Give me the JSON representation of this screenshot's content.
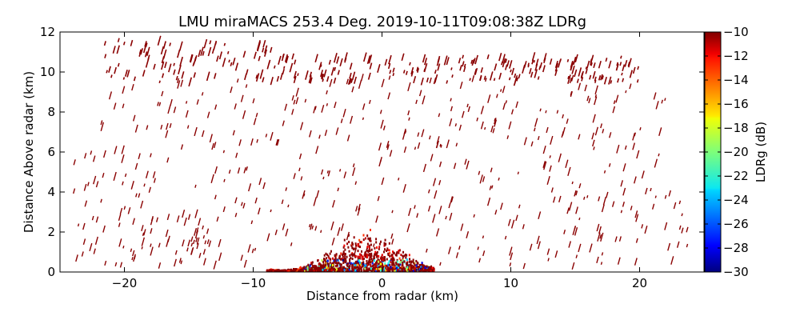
{
  "chart_data": {
    "type": "heatmap",
    "title": "LMU miraMACS 253.4 Deg. 2019-10-11T09:08:38Z  LDRg",
    "xlabel": "Distance from radar (km)",
    "ylabel": "Distance Above radar  (km)",
    "xlim": [
      -25,
      25
    ],
    "ylim": [
      0,
      12
    ],
    "x_ticks": [
      -20,
      -10,
      0,
      10,
      20
    ],
    "x_tick_labels": [
      "−20",
      "−10",
      "0",
      "10",
      "20"
    ],
    "y_ticks": [
      0,
      2,
      4,
      6,
      8,
      10,
      12
    ],
    "y_tick_labels": [
      "0",
      "2",
      "4",
      "6",
      "8",
      "10",
      "12"
    ],
    "grid": false,
    "colorbar": {
      "label": "LDRg (dB)",
      "range": [
        -30,
        -10
      ],
      "ticks": [
        -10,
        -12,
        -14,
        -16,
        -18,
        -20,
        -22,
        -24,
        -26,
        -28,
        -30
      ],
      "tick_labels": [
        "−10",
        "−12",
        "−14",
        "−16",
        "−18",
        "−20",
        "−22",
        "−24",
        "−26",
        "−28",
        "−30"
      ],
      "colormap": "jet"
    },
    "cloud_layers": [
      {
        "x_range": [
          -21.5,
          -8
        ],
        "y_range": [
          9.5,
          11.6
        ],
        "ldr_db": -10
      },
      {
        "x_range": [
          -8,
          20
        ],
        "y_range": [
          9.5,
          10.8
        ],
        "ldr_db": -10
      }
    ],
    "near_radar_region": {
      "x_range": [
        -9,
        4
      ],
      "y_range": [
        0,
        2.2
      ],
      "ldr_db_range": [
        -30,
        -10
      ]
    }
  }
}
